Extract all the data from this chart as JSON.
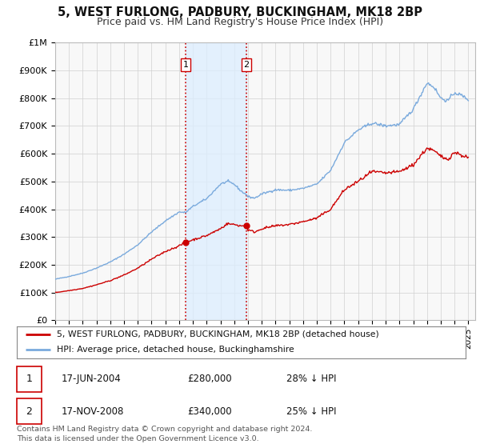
{
  "title": "5, WEST FURLONG, PADBURY, BUCKINGHAM, MK18 2BP",
  "subtitle": "Price paid vs. HM Land Registry's House Price Index (HPI)",
  "title_fontsize": 10.5,
  "subtitle_fontsize": 9,
  "background_color": "#ffffff",
  "grid_color": "#d0d0d0",
  "hpi_color": "#7aaadd",
  "price_color": "#cc0000",
  "shade_color": "#ddeeff",
  "transaction1_x": 2004.46,
  "transaction1_y": 280000,
  "transaction2_x": 2008.88,
  "transaction2_y": 340000,
  "ylabel_items": [
    "£0",
    "£100K",
    "£200K",
    "£300K",
    "£400K",
    "£500K",
    "£600K",
    "£700K",
    "£800K",
    "£900K",
    "£1M"
  ],
  "yticks": [
    0,
    100000,
    200000,
    300000,
    400000,
    500000,
    600000,
    700000,
    800000,
    900000,
    1000000
  ],
  "xmin": 1995.0,
  "xmax": 2025.5,
  "ymin": 0,
  "ymax": 1000000,
  "legend_label1": "5, WEST FURLONG, PADBURY, BUCKINGHAM, MK18 2BP (detached house)",
  "legend_label2": "HPI: Average price, detached house, Buckinghamshire",
  "footnote": "Contains HM Land Registry data © Crown copyright and database right 2024.\nThis data is licensed under the Open Government Licence v3.0.",
  "table_rows": [
    {
      "num": "1",
      "date": "17-JUN-2004",
      "price": "£280,000",
      "pct": "28% ↓ HPI"
    },
    {
      "num": "2",
      "date": "17-NOV-2008",
      "price": "£340,000",
      "pct": "25% ↓ HPI"
    }
  ]
}
